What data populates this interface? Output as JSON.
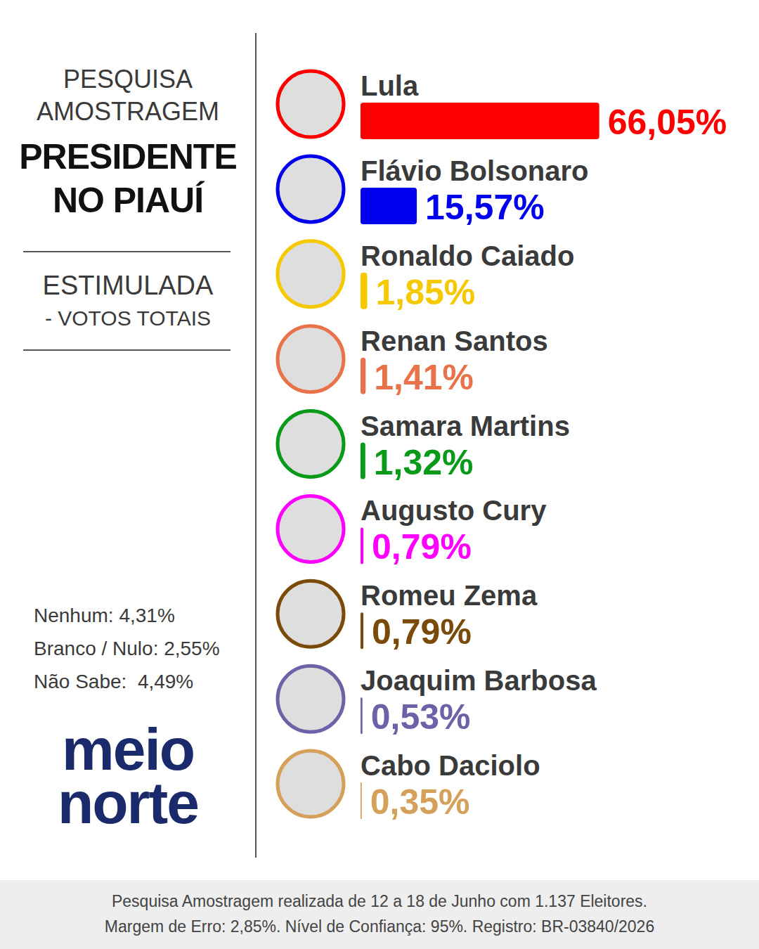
{
  "chart_data": {
    "type": "bar",
    "orientation": "horizontal",
    "categories": [
      "Lula",
      "Flávio Bolsonaro",
      "Ronaldo Caiado",
      "Renan Santos",
      "Samara Martins",
      "Augusto Cury",
      "Romeu Zema",
      "Joaquim Barbosa",
      "Cabo Daciolo"
    ],
    "values": [
      66.05,
      15.57,
      1.85,
      1.41,
      1.32,
      0.79,
      0.79,
      0.53,
      0.35
    ],
    "value_labels": [
      "66,05%",
      "15,57%",
      "1,85%",
      "1,41%",
      "1,32%",
      "0,79%",
      "0,79%",
      "0,53%",
      "0,35%"
    ],
    "colors": [
      "#ff0000",
      "#0000ee",
      "#f5c800",
      "#e8734a",
      "#0a9a1a",
      "#ff00ff",
      "#7a4a0a",
      "#6b62a8",
      "#d4a05a"
    ],
    "xlim": [
      0,
      70
    ],
    "data_labels": true,
    "tick_labels": false,
    "grid": false
  },
  "header": {
    "kicker": [
      "PESQUISA",
      "AMOSTRAGEM"
    ],
    "title": [
      "PRESIDENTE",
      "NO PIAUÍ"
    ],
    "subtitle": [
      "ESTIMULADA",
      "- VOTOS TOTAIS"
    ]
  },
  "others": [
    "Nenhum: 4,31%",
    "Branco / Nulo: 2,55%",
    "Não Sabe:  4,49%"
  ],
  "logo": [
    "meio",
    "norte"
  ],
  "footer": [
    "Pesquisa Amostragem realizada de 12 a 18 de Junho com 1.137 Eleitores.",
    "Margem de Erro: 2,85%. Nível de Confiança: 95%. Registro: BR-03840/2026"
  ]
}
